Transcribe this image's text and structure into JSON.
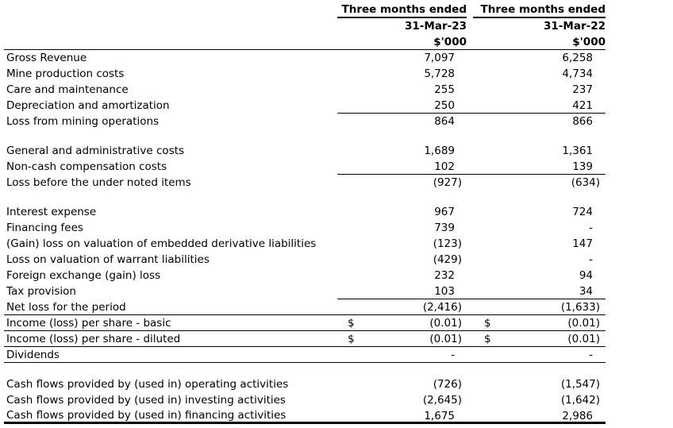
{
  "page": {
    "background_color": "#ffffff",
    "text_color": "#000000"
  },
  "table": {
    "header": {
      "col1": {
        "period": "Three months ended",
        "date": "31-Mar-23",
        "unit": "$'000"
      },
      "col2": {
        "period": "Three months ended",
        "date": "31-Mar-22",
        "unit": "$'000"
      }
    },
    "rows": [
      {
        "type": "row",
        "label": "Gross Revenue",
        "v1": "7,097",
        "v2": "6,258",
        "border": "none"
      },
      {
        "type": "row",
        "label": "Mine production costs",
        "v1": "5,728",
        "v2": "4,734",
        "border": "none"
      },
      {
        "type": "row",
        "label": "Care and maintenance",
        "v1": "255",
        "v2": "237",
        "border": "none"
      },
      {
        "type": "row",
        "label": "Depreciation and amortization",
        "v1": "250",
        "v2": "421",
        "border": "cols"
      },
      {
        "type": "row",
        "label": "Loss from mining operations",
        "v1": "864",
        "v2": "866",
        "border": "none"
      },
      {
        "type": "gap"
      },
      {
        "type": "row",
        "label": "General and administrative costs",
        "v1": "1,689",
        "v2": "1,361",
        "border": "none"
      },
      {
        "type": "row",
        "label": "Non-cash compensation costs",
        "v1": "102",
        "v2": "139",
        "border": "cols"
      },
      {
        "type": "row",
        "label": "Loss before the under noted items",
        "v1": "(927)",
        "v2": "(634)",
        "border": "none"
      },
      {
        "type": "gap"
      },
      {
        "type": "row",
        "label": "Interest expense",
        "v1": "967",
        "v2": "724",
        "border": "none"
      },
      {
        "type": "row",
        "label": "Financing fees",
        "v1": "739",
        "v2": "-",
        "border": "none"
      },
      {
        "type": "row",
        "label": "(Gain) loss on valuation of embedded derivative liabilities",
        "v1": "(123)",
        "v2": "147",
        "border": "none"
      },
      {
        "type": "row",
        "label": "Loss on valuation of warrant liabilities",
        "v1": "(429)",
        "v2": "-",
        "border": "none"
      },
      {
        "type": "row",
        "label": "Foreign exchange (gain) loss",
        "v1": "232",
        "v2": "94",
        "border": "none"
      },
      {
        "type": "row",
        "label": "Tax provision",
        "v1": "103",
        "v2": "34",
        "border": "cols"
      },
      {
        "type": "row",
        "label": "Net loss for the period",
        "v1": "(2,416)",
        "v2": "(1,633)",
        "border": "full"
      },
      {
        "type": "row",
        "label": "Income (loss) per share - basic",
        "d1": "$",
        "v1": "(0.01)",
        "d2": "$",
        "v2": "(0.01)",
        "border": "full"
      },
      {
        "type": "row",
        "label": "Income (loss) per share - diluted",
        "d1": "$",
        "v1": "(0.01)",
        "d2": "$",
        "v2": "(0.01)",
        "border": "full"
      },
      {
        "type": "row",
        "label": "Dividends",
        "v1": "-",
        "v2": "-",
        "border": "full"
      },
      {
        "type": "gap"
      },
      {
        "type": "row",
        "label": "Cash flows provided by (used in) operating activities",
        "v1": "(726)",
        "v2": "(1,547)",
        "border": "none"
      },
      {
        "type": "row",
        "label": "Cash flows provided by (used in) investing activities",
        "v1": "(2,645)",
        "v2": "(1,642)",
        "border": "none"
      },
      {
        "type": "row",
        "label": "Cash flows provided by (used in) financing activities",
        "v1": "1,675",
        "v2": "2,986",
        "border": "thick"
      }
    ]
  }
}
